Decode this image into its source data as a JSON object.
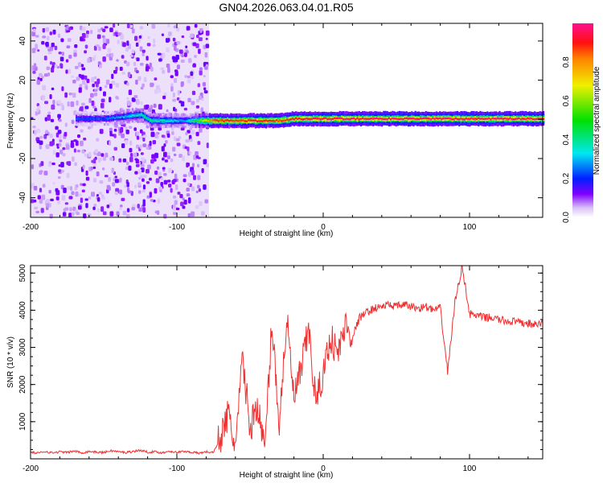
{
  "chart_data": [
    {
      "type": "heatmap",
      "title": "GN04.2026.063.04.01.R05",
      "xlabel": "Height of straight line (km)",
      "ylabel": "Frequency (Hz)",
      "xlim": [
        -200,
        150
      ],
      "ylim": [
        -50,
        49
      ],
      "xticks": [
        -200,
        -100,
        0,
        100
      ],
      "yticks": [
        -40,
        -20,
        0,
        20,
        40
      ],
      "colorbar": {
        "label": "Normalized spectral amplitude",
        "range": [
          0,
          1
        ],
        "ticks": [
          "0.0",
          "0.2",
          "0.4",
          "0.6",
          "0.8"
        ]
      },
      "noise_region": {
        "height_range": [
          -200,
          -78
        ],
        "freq_range": [
          -50,
          49
        ],
        "amplitude": 0.08
      },
      "ridge": [
        {
          "height": -170,
          "freq": 0,
          "amplitude": 0.2
        },
        {
          "height": -150,
          "freq": 0,
          "amplitude": 0.2
        },
        {
          "height": -125,
          "freq": 2,
          "amplitude": 0.35
        },
        {
          "height": -118,
          "freq": -1,
          "amplitude": 0.4
        },
        {
          "height": -95,
          "freq": -1,
          "amplitude": 0.25
        },
        {
          "height": -75,
          "freq": -1,
          "amplitude": 0.85
        },
        {
          "height": -60,
          "freq": -1,
          "amplitude": 0.85
        },
        {
          "height": -45,
          "freq": -1,
          "amplitude": 0.9
        },
        {
          "height": -30,
          "freq": -1,
          "amplitude": 0.85
        },
        {
          "height": -20,
          "freq": 0,
          "amplitude": 0.9
        },
        {
          "height": 0,
          "freq": 0,
          "amplitude": 0.95
        },
        {
          "height": 50,
          "freq": 0,
          "amplitude": 0.95
        },
        {
          "height": 100,
          "freq": 0,
          "amplitude": 0.95
        },
        {
          "height": 150,
          "freq": 0,
          "amplitude": 0.95
        }
      ]
    },
    {
      "type": "line",
      "xlabel": "Height of straight line (km)",
      "ylabel": "SNR (10 * v/v)",
      "xlim": [
        -200,
        150
      ],
      "ylim": [
        0,
        5200
      ],
      "xticks": [
        -200,
        -100,
        0,
        100
      ],
      "yticks": [
        1000,
        2000,
        3000,
        4000,
        5000
      ],
      "color": "#f03030",
      "x_start": -200,
      "x_step": 5,
      "values": [
        180,
        150,
        200,
        160,
        190,
        170,
        210,
        160,
        200,
        180,
        170,
        220,
        190,
        170,
        200,
        230,
        180,
        190,
        160,
        210,
        170,
        200,
        180,
        150,
        190,
        170,
        600,
        1200,
        300,
        2700,
        800,
        1500,
        200,
        3700,
        900,
        3800,
        1600,
        2400,
        3500,
        1500,
        2300,
        3300,
        2800,
        3600,
        3300,
        3800,
        3950,
        4050,
        4100,
        4150,
        4100,
        4150,
        4100,
        4050,
        4100,
        4000,
        4050,
        2350,
        4200,
        5200,
        3900,
        3850,
        3800,
        3800,
        3750,
        3700,
        3700,
        3650,
        3650,
        3600,
        3650
      ]
    }
  ]
}
